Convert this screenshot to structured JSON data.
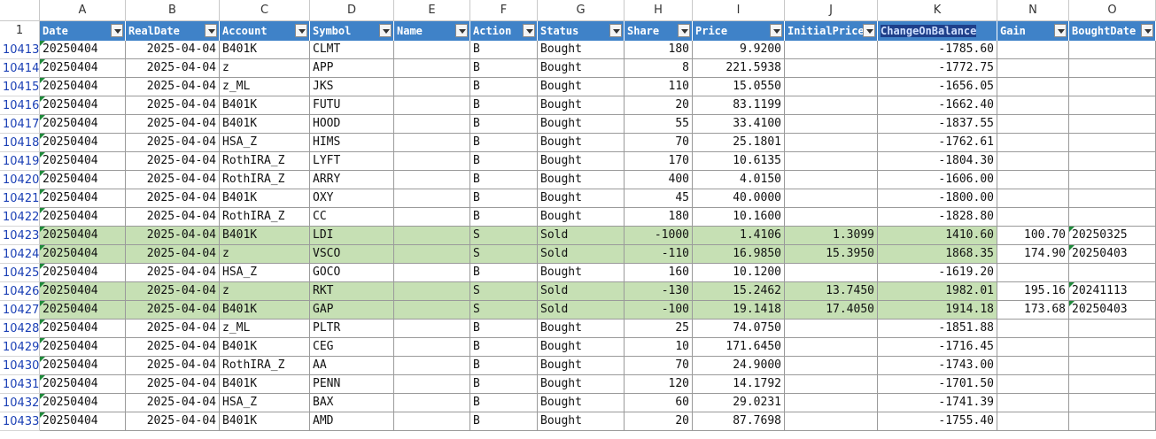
{
  "column_letters": [
    "A",
    "B",
    "C",
    "D",
    "E",
    "F",
    "G",
    "H",
    "I",
    "J",
    "K",
    "N",
    "O"
  ],
  "header_row_number": "1",
  "headers": [
    "Date",
    "RealDate",
    "Account",
    "Symbol",
    "Name",
    "Action",
    "Status",
    "Share",
    "Price",
    "InitialPrice",
    "ChangeOnBalance",
    "Gain",
    "BoughtDate"
  ],
  "rows": [
    {
      "n": "10413",
      "date": "20250404",
      "real": "2025-04-04",
      "acct": "B401K",
      "sym": "CLMT",
      "name": "",
      "act": "B",
      "status": "Bought",
      "share": "180",
      "price": "9.9200",
      "init": "",
      "chg": "-1785.60",
      "gain": "",
      "bought": "",
      "hl": false
    },
    {
      "n": "10414",
      "date": "20250404",
      "real": "2025-04-04",
      "acct": "z",
      "sym": "APP",
      "name": "",
      "act": "B",
      "status": "Bought",
      "share": "8",
      "price": "221.5938",
      "init": "",
      "chg": "-1772.75",
      "gain": "",
      "bought": "",
      "hl": false
    },
    {
      "n": "10415",
      "date": "20250404",
      "real": "2025-04-04",
      "acct": "z_ML",
      "sym": "JKS",
      "name": "",
      "act": "B",
      "status": "Bought",
      "share": "110",
      "price": "15.0550",
      "init": "",
      "chg": "-1656.05",
      "gain": "",
      "bought": "",
      "hl": false
    },
    {
      "n": "10416",
      "date": "20250404",
      "real": "2025-04-04",
      "acct": "B401K",
      "sym": "FUTU",
      "name": "",
      "act": "B",
      "status": "Bought",
      "share": "20",
      "price": "83.1199",
      "init": "",
      "chg": "-1662.40",
      "gain": "",
      "bought": "",
      "hl": false
    },
    {
      "n": "10417",
      "date": "20250404",
      "real": "2025-04-04",
      "acct": "B401K",
      "sym": "HOOD",
      "name": "",
      "act": "B",
      "status": "Bought",
      "share": "55",
      "price": "33.4100",
      "init": "",
      "chg": "-1837.55",
      "gain": "",
      "bought": "",
      "hl": false
    },
    {
      "n": "10418",
      "date": "20250404",
      "real": "2025-04-04",
      "acct": "HSA_Z",
      "sym": "HIMS",
      "name": "",
      "act": "B",
      "status": "Bought",
      "share": "70",
      "price": "25.1801",
      "init": "",
      "chg": "-1762.61",
      "gain": "",
      "bought": "",
      "hl": false
    },
    {
      "n": "10419",
      "date": "20250404",
      "real": "2025-04-04",
      "acct": "RothIRA_Z",
      "sym": "LYFT",
      "name": "",
      "act": "B",
      "status": "Bought",
      "share": "170",
      "price": "10.6135",
      "init": "",
      "chg": "-1804.30",
      "gain": "",
      "bought": "",
      "hl": false
    },
    {
      "n": "10420",
      "date": "20250404",
      "real": "2025-04-04",
      "acct": "RothIRA_Z",
      "sym": "ARRY",
      "name": "",
      "act": "B",
      "status": "Bought",
      "share": "400",
      "price": "4.0150",
      "init": "",
      "chg": "-1606.00",
      "gain": "",
      "bought": "",
      "hl": false
    },
    {
      "n": "10421",
      "date": "20250404",
      "real": "2025-04-04",
      "acct": "B401K",
      "sym": "OXY",
      "name": "",
      "act": "B",
      "status": "Bought",
      "share": "45",
      "price": "40.0000",
      "init": "",
      "chg": "-1800.00",
      "gain": "",
      "bought": "",
      "hl": false
    },
    {
      "n": "10422",
      "date": "20250404",
      "real": "2025-04-04",
      "acct": "RothIRA_Z",
      "sym": "CC",
      "name": "",
      "act": "B",
      "status": "Bought",
      "share": "180",
      "price": "10.1600",
      "init": "",
      "chg": "-1828.80",
      "gain": "",
      "bought": "",
      "hl": false
    },
    {
      "n": "10423",
      "date": "20250404",
      "real": "2025-04-04",
      "acct": "B401K",
      "sym": "LDI",
      "name": "",
      "act": "S",
      "status": "Sold",
      "share": "-1000",
      "price": "1.4106",
      "init": "1.3099",
      "chg": "1410.60",
      "gain": "100.70",
      "bought": "20250325",
      "hl": true
    },
    {
      "n": "10424",
      "date": "20250404",
      "real": "2025-04-04",
      "acct": "z",
      "sym": "VSCO",
      "name": "",
      "act": "S",
      "status": "Sold",
      "share": "-110",
      "price": "16.9850",
      "init": "15.3950",
      "chg": "1868.35",
      "gain": "174.90",
      "bought": "20250403",
      "hl": true
    },
    {
      "n": "10425",
      "date": "20250404",
      "real": "2025-04-04",
      "acct": "HSA_Z",
      "sym": "GOCO",
      "name": "",
      "act": "B",
      "status": "Bought",
      "share": "160",
      "price": "10.1200",
      "init": "",
      "chg": "-1619.20",
      "gain": "",
      "bought": "",
      "hl": false
    },
    {
      "n": "10426",
      "date": "20250404",
      "real": "2025-04-04",
      "acct": "z",
      "sym": "RKT",
      "name": "",
      "act": "S",
      "status": "Sold",
      "share": "-130",
      "price": "15.2462",
      "init": "13.7450",
      "chg": "1982.01",
      "gain": "195.16",
      "bought": "20241113",
      "hl": true
    },
    {
      "n": "10427",
      "date": "20250404",
      "real": "2025-04-04",
      "acct": "B401K",
      "sym": "GAP",
      "name": "",
      "act": "S",
      "status": "Sold",
      "share": "-100",
      "price": "19.1418",
      "init": "17.4050",
      "chg": "1914.18",
      "gain": "173.68",
      "bought": "20250403",
      "hl": true
    },
    {
      "n": "10428",
      "date": "20250404",
      "real": "2025-04-04",
      "acct": "z_ML",
      "sym": "PLTR",
      "name": "",
      "act": "B",
      "status": "Bought",
      "share": "25",
      "price": "74.0750",
      "init": "",
      "chg": "-1851.88",
      "gain": "",
      "bought": "",
      "hl": false
    },
    {
      "n": "10429",
      "date": "20250404",
      "real": "2025-04-04",
      "acct": "B401K",
      "sym": "CEG",
      "name": "",
      "act": "B",
      "status": "Bought",
      "share": "10",
      "price": "171.6450",
      "init": "",
      "chg": "-1716.45",
      "gain": "",
      "bought": "",
      "hl": false
    },
    {
      "n": "10430",
      "date": "20250404",
      "real": "2025-04-04",
      "acct": "RothIRA_Z",
      "sym": "AA",
      "name": "",
      "act": "B",
      "status": "Bought",
      "share": "70",
      "price": "24.9000",
      "init": "",
      "chg": "-1743.00",
      "gain": "",
      "bought": "",
      "hl": false
    },
    {
      "n": "10431",
      "date": "20250404",
      "real": "2025-04-04",
      "acct": "B401K",
      "sym": "PENN",
      "name": "",
      "act": "B",
      "status": "Bought",
      "share": "120",
      "price": "14.1792",
      "init": "",
      "chg": "-1701.50",
      "gain": "",
      "bought": "",
      "hl": false
    },
    {
      "n": "10432",
      "date": "20250404",
      "real": "2025-04-04",
      "acct": "HSA_Z",
      "sym": "BAX",
      "name": "",
      "act": "B",
      "status": "Bought",
      "share": "60",
      "price": "29.0231",
      "init": "",
      "chg": "-1741.39",
      "gain": "",
      "bought": "",
      "hl": false
    },
    {
      "n": "10433",
      "date": "20250404",
      "real": "2025-04-04",
      "acct": "B401K",
      "sym": "AMD",
      "name": "",
      "act": "B",
      "status": "Bought",
      "share": "20",
      "price": "87.7698",
      "init": "",
      "chg": "-1755.40",
      "gain": "",
      "bought": "",
      "hl": false
    }
  ],
  "colors": {
    "header_blue": "#3f82c8",
    "sold_green": "#c6e0b4",
    "row_number_blue": "#1a3fb5"
  }
}
